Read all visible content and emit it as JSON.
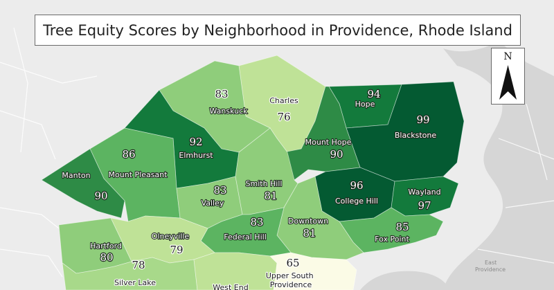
{
  "map": {
    "title": "Tree Equity Scores by Neighborhood in Providence, Rhode Island",
    "north_label": "N",
    "basemap_labels": [
      "East",
      "Providence"
    ],
    "color_scale": {
      "lowest": "#fbfbe6",
      "light": "#bfe297",
      "medium": "#8fcd7b",
      "mid": "#5cb461",
      "dark": "#2e8b46",
      "darker": "#137a3c",
      "darkest": "#045a32"
    },
    "neighborhoods": [
      {
        "name": "Charles",
        "score": "76"
      },
      {
        "name": "Wanskuck",
        "score": "83"
      },
      {
        "name": "Hope",
        "score": "94"
      },
      {
        "name": "Blackstone",
        "score": "99"
      },
      {
        "name": "Mount Hope",
        "score": "90"
      },
      {
        "name": "Elmhurst",
        "score": "92"
      },
      {
        "name": "Mount Pleasant",
        "score": "86"
      },
      {
        "name": "Manton",
        "score": "90"
      },
      {
        "name": "Valley",
        "score": "83"
      },
      {
        "name": "Smith Hill",
        "score": "81"
      },
      {
        "name": "College Hill",
        "score": "96"
      },
      {
        "name": "Wayland",
        "score": "97"
      },
      {
        "name": "Fox Point",
        "score": "85"
      },
      {
        "name": "Downtown",
        "score": "81"
      },
      {
        "name": "Federal Hill",
        "score": "83"
      },
      {
        "name": "Olneyville",
        "score": "79"
      },
      {
        "name": "Hartford",
        "score": "80"
      },
      {
        "name": "Silver Lake",
        "score": "78"
      },
      {
        "name": "West End",
        "score": ""
      },
      {
        "name": "Upper South Providence",
        "score": "65"
      }
    ]
  }
}
